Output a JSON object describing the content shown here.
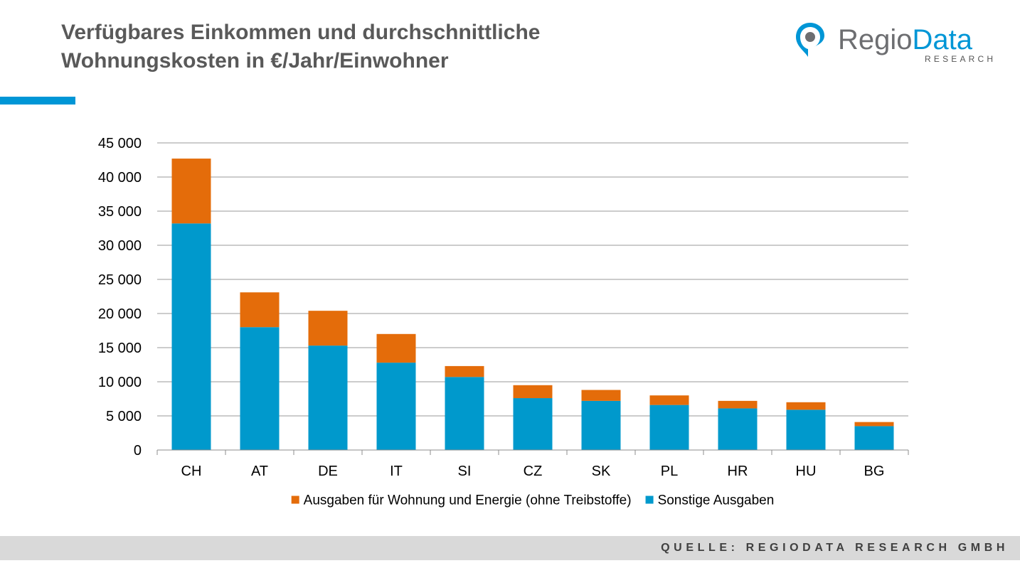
{
  "header": {
    "title_line1": "Verfügbares Einkommen und durchschnittliche",
    "title_line2": "Wohnungskosten in €/Jahr/Einwohner"
  },
  "logo": {
    "name_part1": "Regio",
    "name_part2": "Data",
    "subtitle": "RESEARCH",
    "colors": {
      "grey": "#6d6e71",
      "blue": "#0096d6"
    }
  },
  "footer": {
    "source": "QUELLE: REGIODATA RESEARCH GMBH"
  },
  "chart_data": {
    "type": "bar",
    "stacked": true,
    "categories": [
      "CH",
      "AT",
      "DE",
      "IT",
      "SI",
      "CZ",
      "SK",
      "PL",
      "HR",
      "HU",
      "BG"
    ],
    "series": [
      {
        "name": "Sonstige Ausgaben",
        "color": "#0099cc",
        "values": [
          33200,
          18000,
          15300,
          12800,
          10700,
          7600,
          7200,
          6600,
          6100,
          5900,
          3500
        ]
      },
      {
        "name": "Ausgaben für Wohnung und Energie (ohne Treibstoffe)",
        "color": "#e46c0a",
        "values": [
          9500,
          5100,
          5100,
          4200,
          1600,
          1900,
          1600,
          1400,
          1100,
          1100,
          600
        ]
      }
    ],
    "legend_order": [
      1,
      0
    ],
    "ylim": [
      0,
      45000
    ],
    "yticks": [
      0,
      5000,
      10000,
      15000,
      20000,
      25000,
      30000,
      35000,
      40000,
      45000
    ],
    "ytick_labels": [
      "0",
      "5 000",
      "10 000",
      "15 000",
      "20 000",
      "25 000",
      "30 000",
      "35 000",
      "40 000",
      "45 000"
    ],
    "grid": true,
    "legend_position": "bottom"
  }
}
